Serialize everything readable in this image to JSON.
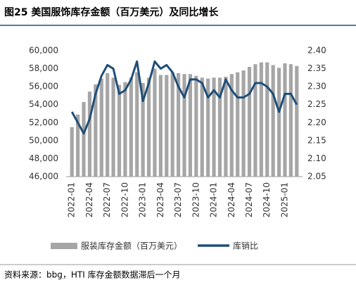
{
  "chart_data": {
    "type": "bar",
    "title": "图25 美国服饰库存金额（百万美元）及同比增长",
    "source": "资料来源：bbg，HTI 库存金额数据滞后一个月",
    "categories": [
      "2022-01",
      null,
      null,
      "2022-04",
      null,
      null,
      "2022-07",
      null,
      null,
      "2022-10",
      null,
      null,
      "2023-01",
      null,
      null,
      "2023-04",
      null,
      null,
      "2023-07",
      null,
      null,
      "2023-10",
      null,
      null,
      "2024-01",
      null,
      null,
      "2024-04",
      null,
      null,
      "2024-07",
      null,
      null,
      "2024-10",
      null,
      null,
      "2025-01",
      null,
      null
    ],
    "series": [
      {
        "name": "服装库存金额（百万美元）",
        "type": "bar",
        "color": "#a6a6a6",
        "axis": "y",
        "values": [
          51500,
          52900,
          54300,
          55450,
          56250,
          56900,
          57500,
          57000,
          56200,
          56500,
          57000,
          57600,
          56400,
          57000,
          58000,
          57300,
          57300,
          57600,
          57500,
          57400,
          57400,
          57200,
          57000,
          56900,
          57000,
          57000,
          57100,
          57400,
          57600,
          57800,
          58200,
          58500,
          58700,
          58700,
          58400,
          58100,
          58600,
          58500,
          58300
        ]
      },
      {
        "name": "库销比",
        "type": "line",
        "color": "#1f4e79",
        "axis": "y2",
        "values": [
          2.23,
          2.2,
          2.17,
          2.21,
          2.28,
          2.33,
          2.36,
          2.35,
          2.28,
          2.29,
          2.32,
          2.37,
          2.26,
          2.31,
          2.37,
          2.35,
          2.36,
          2.34,
          2.3,
          2.27,
          2.32,
          2.32,
          2.31,
          2.27,
          2.29,
          2.27,
          2.32,
          2.29,
          2.27,
          2.27,
          2.28,
          2.31,
          2.31,
          2.3,
          2.28,
          2.23,
          2.28,
          2.28,
          2.25
        ]
      }
    ],
    "ylim": [
      46000,
      60000
    ],
    "yticks": [
      {
        "value": 46000,
        "label": "46,000"
      },
      {
        "value": 48000,
        "label": "48,000"
      },
      {
        "value": 50000,
        "label": "50,000"
      },
      {
        "value": 52000,
        "label": "52,000"
      },
      {
        "value": 54000,
        "label": "54,000"
      },
      {
        "value": 56000,
        "label": "56,000"
      },
      {
        "value": 58000,
        "label": "58,000"
      },
      {
        "value": 60000,
        "label": "60,000"
      }
    ],
    "y2lim": [
      2.05,
      2.4
    ],
    "y2ticks": [
      2.05,
      {
        "value": 2.1,
        "label": "2.10"
      },
      2.15,
      {
        "value": 2.2,
        "label": "2.20"
      },
      2.25,
      {
        "value": 2.3,
        "label": "2.30"
      },
      2.35,
      {
        "value": 2.4,
        "label": "2.40"
      }
    ],
    "legend": "bottom"
  }
}
